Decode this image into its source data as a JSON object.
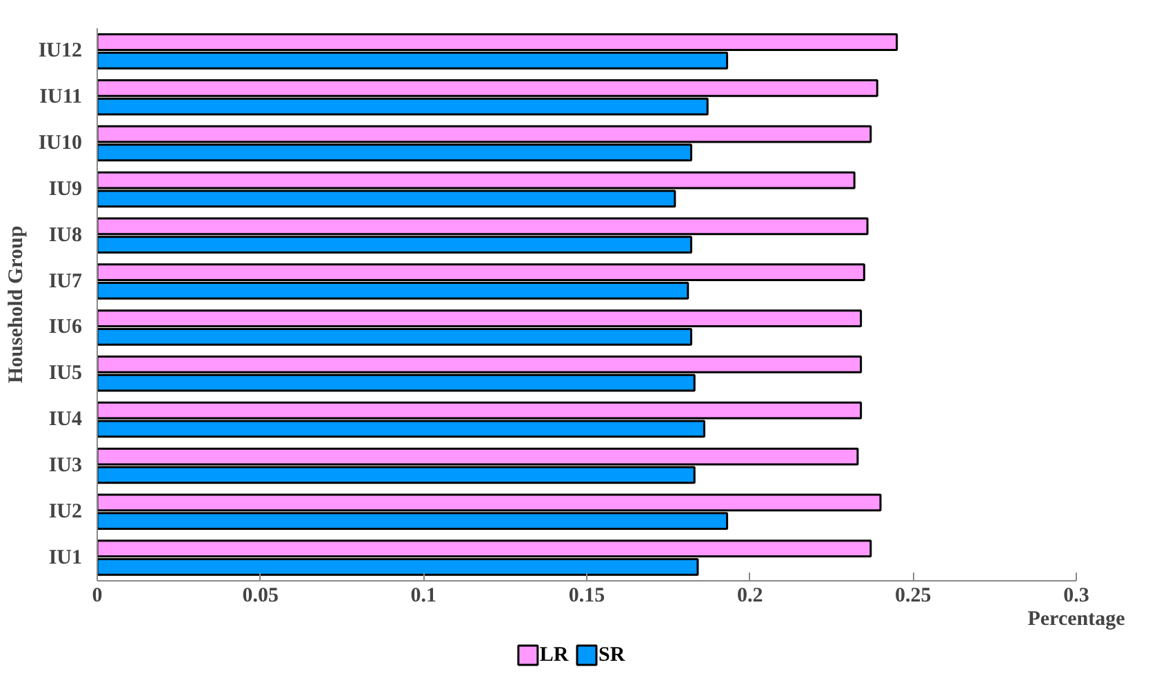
{
  "chart_data": {
    "type": "bar",
    "orientation": "horizontal",
    "xlabel": "Percentage",
    "ylabel": "Household Group",
    "categories": [
      "IU12",
      "IU11",
      "IU10",
      "IU9",
      "IU8",
      "IU7",
      "IU6",
      "IU5",
      "IU4",
      "IU3",
      "IU2",
      "IU1"
    ],
    "series": [
      {
        "name": "LR",
        "color": "#ff99ff",
        "values": [
          0.245,
          0.239,
          0.237,
          0.232,
          0.236,
          0.235,
          0.234,
          0.234,
          0.234,
          0.233,
          0.24,
          0.237
        ]
      },
      {
        "name": "SR",
        "color": "#0099ff",
        "values": [
          0.193,
          0.187,
          0.182,
          0.177,
          0.182,
          0.181,
          0.182,
          0.183,
          0.186,
          0.183,
          0.193,
          0.184
        ]
      }
    ],
    "xlim": [
      0,
      0.3
    ],
    "xticks": [
      0,
      0.05,
      0.1,
      0.15,
      0.2,
      0.25,
      0.3
    ],
    "grid": false,
    "legend": "bottom"
  }
}
